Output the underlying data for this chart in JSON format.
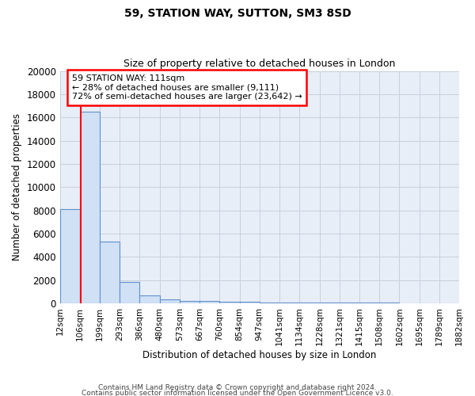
{
  "title1": "59, STATION WAY, SUTTON, SM3 8SD",
  "title2": "Size of property relative to detached houses in London",
  "xlabel": "Distribution of detached houses by size in London",
  "ylabel": "Number of detached properties",
  "bar_color": "#d0e0f5",
  "bar_edge_color": "#6090c8",
  "bar_edge_width": 0.8,
  "grid_color": "#c8d0dc",
  "bg_color": "#e8eef8",
  "annotation_text": "59 STATION WAY: 111sqm\n← 28% of detached houses are smaller (9,111)\n72% of semi-detached houses are larger (23,642) →",
  "annotation_box_color": "white",
  "annotation_box_edge": "red",
  "red_line_x": 111,
  "red_line_color": "red",
  "footnote1": "Contains HM Land Registry data © Crown copyright and database right 2024.",
  "footnote2": "Contains public sector information licensed under the Open Government Licence v3.0.",
  "bin_edges": [
    12,
    106,
    199,
    293,
    386,
    480,
    573,
    667,
    760,
    854,
    947,
    1041,
    1134,
    1228,
    1321,
    1415,
    1508,
    1602,
    1695,
    1789,
    1882
  ],
  "bar_heights": [
    8100,
    16500,
    5300,
    1850,
    700,
    300,
    220,
    200,
    150,
    120,
    80,
    70,
    55,
    45,
    40,
    35,
    28,
    22,
    18,
    15
  ],
  "ylim": [
    0,
    20000
  ],
  "yticks": [
    0,
    2000,
    4000,
    6000,
    8000,
    10000,
    12000,
    14000,
    16000,
    18000,
    20000
  ]
}
